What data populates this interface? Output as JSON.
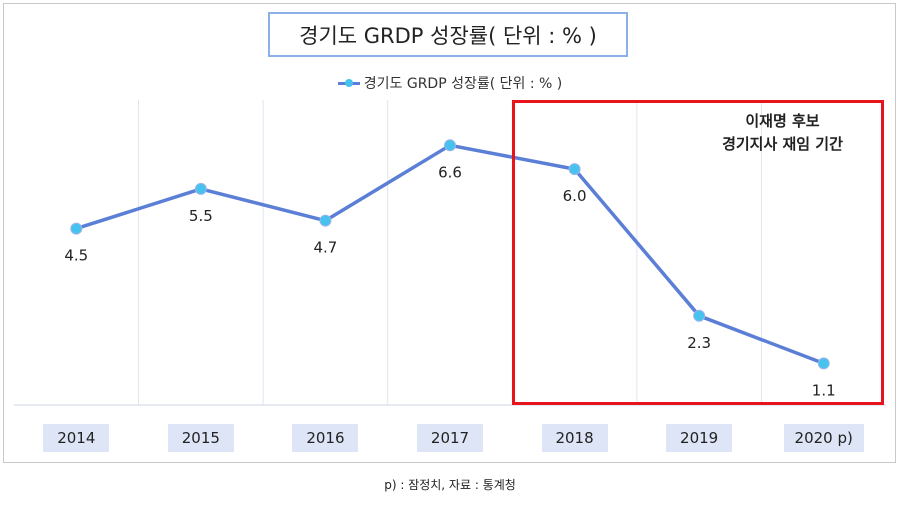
{
  "chart_data": {
    "type": "line",
    "title": "경기도 GRDP 성장률( 단위 : % )",
    "categories": [
      "2014",
      "2015",
      "2016",
      "2017",
      "2018",
      "2019",
      "2020 p)"
    ],
    "series": [
      {
        "name": "경기도 GRDP 성장률( 단위 : % )",
        "values": [
          4.5,
          5.5,
          4.7,
          6.6,
          6.0,
          2.3,
          1.1
        ]
      }
    ],
    "data_labels": [
      "4.5",
      "5.5",
      "4.7",
      "6.6",
      "6.0",
      "2.3",
      "1.1"
    ],
    "ylim": [
      0,
      8
    ],
    "grid": "vertical",
    "legend_position": "top",
    "line_color": "#5b7fd6",
    "marker_color": "#45c3ee",
    "annotation": {
      "text_line1": "이재명 후보",
      "text_line2": "경기지사 재임 기간",
      "box_color": "#e8141b",
      "range": [
        "2018",
        "2020 p)"
      ]
    }
  },
  "footnote": "p) : 잠정치, 자료 : 통계청"
}
